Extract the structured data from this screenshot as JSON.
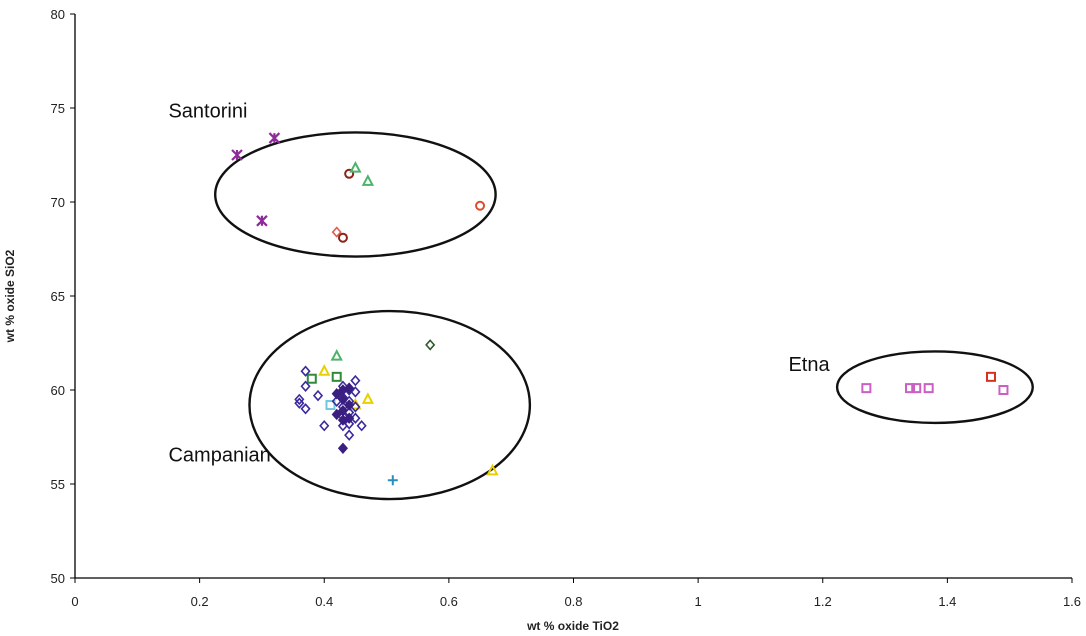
{
  "chart_data": {
    "type": "scatter",
    "title": "",
    "xlabel": "wt % oxide TiO2",
    "ylabel": "wt % oxide SiO2",
    "xlim": [
      0,
      1.6
    ],
    "ylim": [
      50,
      80
    ],
    "grid": false,
    "legend": "none",
    "x_ticks": [
      "0",
      "0.2",
      "0.4",
      "0.6",
      "0.8",
      "1",
      "1.2",
      "1.4",
      "1.6"
    ],
    "y_ticks": [
      "50",
      "55",
      "60",
      "65",
      "70",
      "75",
      "80"
    ],
    "groups": [
      {
        "label": "Santorini",
        "label_at": [
          0.15,
          74.5
        ],
        "ellipse": {
          "cx": 0.45,
          "cy": 70.4,
          "rx": 0.225,
          "ry": 3.3
        }
      },
      {
        "label": "Campanian",
        "label_at": [
          0.15,
          56.2
        ],
        "ellipse": {
          "cx": 0.505,
          "cy": 59.2,
          "rx": 0.225,
          "ry": 5.0
        }
      },
      {
        "label": "Etna",
        "label_at": [
          1.145,
          61.0
        ],
        "ellipse": {
          "cx": 1.38,
          "cy": 60.15,
          "rx": 0.157,
          "ry": 1.9
        }
      }
    ],
    "series": [
      {
        "color": "#8e2a9a",
        "marker": "asterisk",
        "points": [
          [
            0.26,
            72.5
          ],
          [
            0.32,
            73.4
          ],
          [
            0.3,
            69.0
          ]
        ]
      },
      {
        "color": "#e24a2c",
        "marker": "circle",
        "points": [
          [
            0.65,
            69.8
          ]
        ]
      },
      {
        "color": "#8b2318",
        "marker": "circle",
        "points": [
          [
            0.44,
            71.5
          ],
          [
            0.43,
            68.1
          ]
        ]
      },
      {
        "color": "#e06050",
        "marker": "diamond",
        "points": [
          [
            0.42,
            68.4
          ]
        ]
      },
      {
        "color": "#4cb36a",
        "marker": "triangle",
        "points": [
          [
            0.45,
            71.8
          ],
          [
            0.47,
            71.1
          ],
          [
            0.42,
            61.8
          ]
        ]
      },
      {
        "color": "#2f8a3a",
        "marker": "square",
        "points": [
          [
            0.38,
            60.6
          ],
          [
            0.42,
            60.7
          ]
        ]
      },
      {
        "color": "#2e5a2a",
        "marker": "diamond",
        "points": [
          [
            0.57,
            62.4
          ]
        ]
      },
      {
        "color": "#e8d000",
        "marker": "triangle",
        "points": [
          [
            0.4,
            61.0
          ],
          [
            0.47,
            59.5
          ],
          [
            0.45,
            59.2
          ],
          [
            0.67,
            55.7
          ]
        ]
      },
      {
        "color": "#6fc8e0",
        "marker": "square",
        "points": [
          [
            0.41,
            59.2
          ]
        ]
      },
      {
        "color": "#2a8fb8",
        "marker": "plus",
        "points": [
          [
            0.51,
            55.2
          ]
        ]
      },
      {
        "color": "#3a2a9c",
        "marker": "diamond",
        "points": [
          [
            0.37,
            61.0
          ],
          [
            0.37,
            60.2
          ],
          [
            0.36,
            59.5
          ],
          [
            0.36,
            59.3
          ],
          [
            0.37,
            59.0
          ],
          [
            0.39,
            59.7
          ],
          [
            0.4,
            58.1
          ],
          [
            0.42,
            59.4
          ],
          [
            0.43,
            60.2
          ],
          [
            0.43,
            59.6
          ],
          [
            0.43,
            59.1
          ],
          [
            0.43,
            58.6
          ],
          [
            0.43,
            58.1
          ],
          [
            0.44,
            60.0
          ],
          [
            0.44,
            59.4
          ],
          [
            0.44,
            58.8
          ],
          [
            0.44,
            58.2
          ],
          [
            0.44,
            57.6
          ],
          [
            0.45,
            60.5
          ],
          [
            0.45,
            59.9
          ],
          [
            0.45,
            59.1
          ],
          [
            0.45,
            58.5
          ],
          [
            0.46,
            58.1
          ]
        ]
      },
      {
        "color": "#3a1e80",
        "marker": "diamond_filled",
        "points": [
          [
            0.43,
            60.0
          ],
          [
            0.43,
            59.5
          ],
          [
            0.43,
            58.9
          ],
          [
            0.43,
            58.4
          ],
          [
            0.43,
            56.9
          ],
          [
            0.44,
            60.1
          ],
          [
            0.44,
            59.2
          ],
          [
            0.44,
            58.5
          ],
          [
            0.42,
            59.8
          ],
          [
            0.42,
            58.7
          ]
        ]
      },
      {
        "color": "#cc5fc2",
        "marker": "square",
        "points": [
          [
            1.27,
            60.1
          ],
          [
            1.34,
            60.1
          ],
          [
            1.35,
            60.1
          ],
          [
            1.37,
            60.1
          ],
          [
            1.49,
            60.0
          ]
        ]
      },
      {
        "color": "#d83020",
        "marker": "square",
        "points": [
          [
            1.47,
            60.7
          ]
        ]
      }
    ]
  }
}
